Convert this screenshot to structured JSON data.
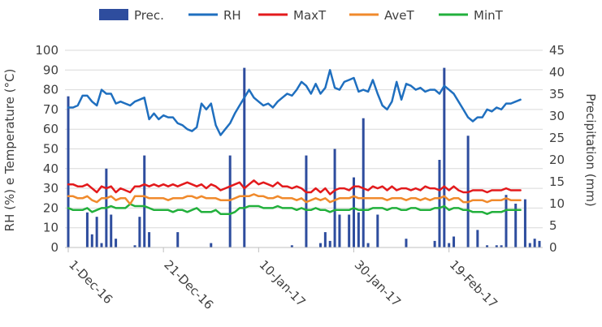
{
  "chart_data": {
    "type": "line",
    "title": "",
    "ylabel_left": "RH (%) e Temperature (°C)",
    "ylabel_right": "Precipitation (mm)",
    "ylim_left": [
      0,
      100
    ],
    "ylim_right": [
      0,
      45
    ],
    "yticks_left": [
      "0",
      "10",
      "20",
      "30",
      "40",
      "50",
      "60",
      "70",
      "80",
      "90",
      "100"
    ],
    "yticks_right": [
      "0",
      "5",
      "10",
      "15",
      "20",
      "25",
      "30",
      "35",
      "40",
      "45"
    ],
    "xticks": [
      {
        "day": 0,
        "label": "1-Dec-16"
      },
      {
        "day": 20,
        "label": "21-Dec-16"
      },
      {
        "day": 40,
        "label": "10-Jan-17"
      },
      {
        "day": 60,
        "label": "30-Jan-17"
      },
      {
        "day": 80,
        "label": "19-Feb-17"
      }
    ],
    "legend": [
      {
        "key": "prec",
        "label": "Prec.",
        "color": "#2e4d9e",
        "kind": "bar"
      },
      {
        "key": "rh",
        "label": "RH",
        "color": "#1f6fbf",
        "kind": "line"
      },
      {
        "key": "maxt",
        "label": "MaxT",
        "color": "#e31a1c",
        "kind": "line"
      },
      {
        "key": "avet",
        "label": "AveT",
        "color": "#f08a2c",
        "kind": "line"
      },
      {
        "key": "mint",
        "label": "MinT",
        "color": "#22b03c",
        "kind": "line"
      }
    ],
    "grid": "horizontal",
    "legend_placement": "top",
    "series": [
      {
        "key": "rh",
        "values": [
          71,
          71,
          72,
          77,
          77,
          74,
          72,
          80,
          78,
          78,
          73,
          74,
          73,
          72,
          74,
          75,
          76,
          65,
          68,
          65,
          67,
          66,
          66,
          63,
          62,
          60,
          59,
          61,
          73,
          70,
          73,
          62,
          57,
          60,
          63,
          68,
          72,
          76,
          80,
          76,
          74,
          72,
          73,
          71,
          74,
          76,
          78,
          77,
          80,
          84,
          82,
          78,
          83,
          78,
          81,
          90,
          81,
          80,
          84,
          85,
          86,
          79,
          80,
          79,
          85,
          78,
          72,
          70,
          74,
          84,
          75,
          83,
          82,
          80,
          81,
          79,
          80,
          80,
          78,
          82,
          80,
          78,
          74,
          70,
          66,
          64,
          66,
          66,
          70,
          69,
          71,
          70,
          73,
          73,
          74,
          75
        ]
      },
      {
        "key": "maxt",
        "values": [
          32,
          32,
          31,
          31,
          32,
          30,
          28,
          31,
          30,
          31,
          28,
          30,
          29,
          28,
          31,
          31,
          32,
          31,
          32,
          31,
          32,
          31,
          32,
          31,
          32,
          33,
          32,
          31,
          32,
          30,
          32,
          31,
          29,
          30,
          31,
          32,
          33,
          30,
          32,
          34,
          32,
          33,
          32,
          31,
          33,
          31,
          31,
          30,
          31,
          30,
          28,
          28,
          30,
          28,
          30,
          27,
          29,
          30,
          30,
          29,
          31,
          31,
          30,
          29,
          31,
          30,
          31,
          29,
          31,
          29,
          30,
          30,
          29,
          30,
          29,
          31,
          30,
          30,
          29,
          31,
          29,
          31,
          29,
          28,
          28,
          29,
          29,
          29,
          28,
          29,
          29,
          29,
          30,
          29,
          29,
          29
        ]
      },
      {
        "key": "avet",
        "values": [
          26,
          26,
          25,
          25,
          26,
          24,
          23,
          25,
          25,
          26,
          24,
          25,
          25,
          22,
          26,
          26,
          26,
          25,
          25,
          25,
          25,
          24,
          25,
          25,
          25,
          26,
          26,
          25,
          26,
          25,
          25,
          25,
          24,
          24,
          24,
          25,
          26,
          26,
          26,
          27,
          26,
          26,
          25,
          25,
          26,
          25,
          25,
          25,
          24,
          25,
          23,
          24,
          25,
          24,
          25,
          23,
          24,
          25,
          25,
          25,
          26,
          25,
          25,
          25,
          25,
          25,
          25,
          24,
          25,
          25,
          25,
          24,
          25,
          25,
          24,
          25,
          24,
          25,
          25,
          26,
          24,
          25,
          25,
          23,
          23,
          24,
          24,
          24,
          23,
          24,
          24,
          24,
          25,
          24,
          24,
          24
        ]
      },
      {
        "key": "mint",
        "values": [
          20,
          19,
          19,
          19,
          20,
          18,
          19,
          20,
          20,
          21,
          20,
          20,
          20,
          22,
          21,
          21,
          21,
          20,
          19,
          19,
          19,
          19,
          18,
          19,
          19,
          18,
          19,
          20,
          18,
          18,
          18,
          19,
          17,
          17,
          17,
          18,
          20,
          20,
          21,
          21,
          21,
          20,
          20,
          20,
          21,
          20,
          20,
          20,
          19,
          20,
          19,
          19,
          20,
          19,
          19,
          18,
          19,
          19,
          19,
          19,
          20,
          19,
          19,
          19,
          20,
          20,
          20,
          19,
          20,
          20,
          19,
          19,
          20,
          20,
          19,
          19,
          19,
          20,
          20,
          21,
          19,
          20,
          20,
          19,
          19,
          18,
          18,
          18,
          17,
          18,
          18,
          18,
          19,
          19,
          19,
          19
        ]
      }
    ],
    "precipitation": [
      {
        "day": 0,
        "value": 34.5
      },
      {
        "day": 4,
        "value": 8
      },
      {
        "day": 5,
        "value": 3
      },
      {
        "day": 6,
        "value": 7
      },
      {
        "day": 7,
        "value": 1
      },
      {
        "day": 8,
        "value": 18
      },
      {
        "day": 9,
        "value": 7.5
      },
      {
        "day": 10,
        "value": 2
      },
      {
        "day": 14,
        "value": 0.5
      },
      {
        "day": 15,
        "value": 7
      },
      {
        "day": 16,
        "value": 21
      },
      {
        "day": 17,
        "value": 3.5
      },
      {
        "day": 23,
        "value": 3.5
      },
      {
        "day": 30,
        "value": 1
      },
      {
        "day": 34,
        "value": 21
      },
      {
        "day": 37,
        "value": 41
      },
      {
        "day": 47,
        "value": 0.5
      },
      {
        "day": 50,
        "value": 21
      },
      {
        "day": 53,
        "value": 1
      },
      {
        "day": 54,
        "value": 3.5
      },
      {
        "day": 55,
        "value": 1.5
      },
      {
        "day": 56,
        "value": 22.5
      },
      {
        "day": 57,
        "value": 7.5
      },
      {
        "day": 59,
        "value": 7.5
      },
      {
        "day": 60,
        "value": 16
      },
      {
        "day": 61,
        "value": 8
      },
      {
        "day": 62,
        "value": 29.5
      },
      {
        "day": 63,
        "value": 1
      },
      {
        "day": 65,
        "value": 7.5
      },
      {
        "day": 71,
        "value": 2
      },
      {
        "day": 77,
        "value": 1.5
      },
      {
        "day": 78,
        "value": 20
      },
      {
        "day": 79,
        "value": 41
      },
      {
        "day": 80,
        "value": 1
      },
      {
        "day": 81,
        "value": 2.5
      },
      {
        "day": 84,
        "value": 25.5
      },
      {
        "day": 86,
        "value": 4
      },
      {
        "day": 88,
        "value": 0.5
      },
      {
        "day": 90,
        "value": 0.5
      },
      {
        "day": 91,
        "value": 0.5
      },
      {
        "day": 92,
        "value": 12
      },
      {
        "day": 94,
        "value": 10
      },
      {
        "day": 96,
        "value": 11
      },
      {
        "day": 97,
        "value": 1
      },
      {
        "day": 98,
        "value": 2
      },
      {
        "day": 99,
        "value": 1.5
      }
    ]
  }
}
